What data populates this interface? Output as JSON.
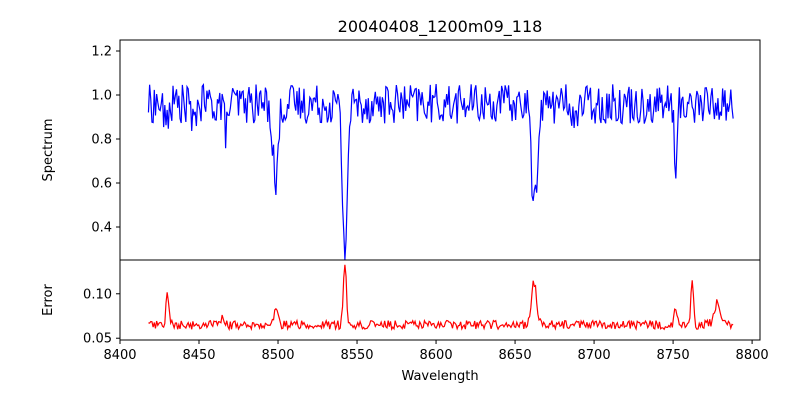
{
  "figure": {
    "title": "20040408_1200m09_118"
  },
  "chart_data": [
    {
      "type": "line",
      "panel": "top",
      "title": "20040408_1200m09_118",
      "xlabel": "",
      "ylabel": "Spectrum",
      "xlim": [
        8400,
        8805
      ],
      "ylim": [
        0.25,
        1.25
      ],
      "yticks": [
        0.4,
        0.6,
        0.8,
        1.0,
        1.2
      ],
      "ytick_labels": [
        "0.4",
        "0.6",
        "0.8",
        "1.0",
        "1.2"
      ],
      "xticks": [],
      "grid": false,
      "series": [
        {
          "color": "#0000ff",
          "x_start": 8418,
          "x_step": 0.74,
          "x_end": 8788,
          "baseline": 0.96,
          "noise": 0.09,
          "features": [
            {
              "center": 8429,
              "depth": 0.1,
              "width": 1.2
            },
            {
              "center": 8446.5,
              "depth": 0.12,
              "width": 1.0
            },
            {
              "center": 8467,
              "depth": 0.12,
              "width": 1.0
            },
            {
              "center": 8498.5,
              "depth": 0.36,
              "width": 1.6
            },
            {
              "center": 8542.3,
              "depth": 0.68,
              "width": 1.5
            },
            {
              "center": 8662.2,
              "depth": 0.48,
              "width": 1.7
            },
            {
              "center": 8688,
              "depth": 0.1,
              "width": 1.0
            },
            {
              "center": 8751.8,
              "depth": 0.36,
              "width": 0.8
            }
          ]
        }
      ]
    },
    {
      "type": "line",
      "panel": "bottom",
      "xlabel": "Wavelength",
      "ylabel": "Error",
      "xlim": [
        8400,
        8805
      ],
      "ylim": [
        0.048,
        0.138
      ],
      "yticks": [
        0.05,
        0.1
      ],
      "ytick_labels": [
        "0.05",
        "0.10"
      ],
      "xticks": [
        8400,
        8450,
        8500,
        8550,
        8600,
        8650,
        8700,
        8750,
        8800
      ],
      "xtick_labels": [
        "8400",
        "8450",
        "8500",
        "8550",
        "8600",
        "8650",
        "8700",
        "8750",
        "8800"
      ],
      "grid": false,
      "series": [
        {
          "color": "#ff0000",
          "x_start": 8418,
          "x_step": 0.74,
          "x_end": 8788,
          "baseline": 0.065,
          "noise": 0.005,
          "features": [
            {
              "center": 8430,
              "height": 0.04,
              "width": 0.8
            },
            {
              "center": 8465,
              "height": 0.01,
              "width": 1.0
            },
            {
              "center": 8498.5,
              "height": 0.015,
              "width": 1.4
            },
            {
              "center": 8542.3,
              "height": 0.068,
              "width": 1.0
            },
            {
              "center": 8662,
              "height": 0.048,
              "width": 1.6
            },
            {
              "center": 8751.5,
              "height": 0.015,
              "width": 1.0
            },
            {
              "center": 8762,
              "height": 0.055,
              "width": 0.8
            },
            {
              "center": 8778,
              "height": 0.025,
              "width": 2.0
            }
          ]
        }
      ]
    }
  ]
}
